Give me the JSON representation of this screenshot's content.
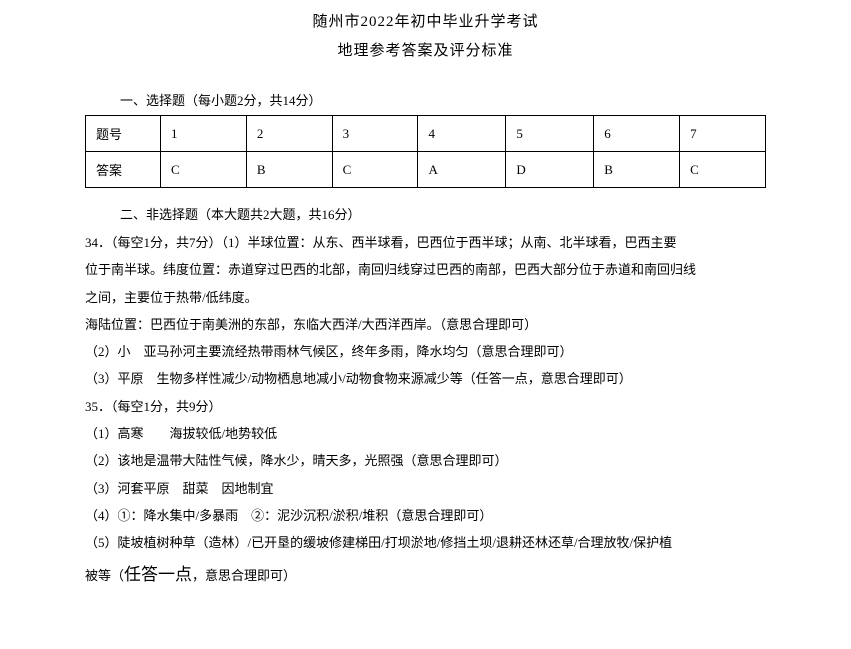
{
  "header": {
    "title_main": "随州市2022年初中毕业升学考试",
    "title_sub": "地理参考答案及评分标准"
  },
  "section1": {
    "header": "一、选择题（每小题2分，共14分）",
    "table": {
      "row1_label": "题号",
      "row2_label": "答案",
      "cols": [
        "1",
        "2",
        "3",
        "4",
        "5",
        "6",
        "7"
      ],
      "answers": [
        "C",
        "B",
        "C",
        "A",
        "D",
        "B",
        "C"
      ]
    }
  },
  "section2": {
    "header": "二、非选择题（本大题共2大题，共16分）",
    "lines": {
      "q34_line1": "34．（每空1分，共7分）（1）半球位置：从东、西半球看，巴西位于西半球；从南、北半球看，巴西主要",
      "q34_line2": "位于南半球。纬度位置：赤道穿过巴西的北部，南回归线穿过巴西的南部，巴西大部分位于赤道和南回归线",
      "q34_line3": "之间，主要位于热带/低纬度。",
      "q34_line4": "海陆位置：巴西位于南美洲的东部，东临大西洋/大西洋西岸。（意思合理即可）",
      "q34_line5": "（2）小　亚马孙河主要流经热带雨林气候区，终年多雨，降水均匀（意思合理即可）",
      "q34_line6": "（3）平原　生物多样性减少/动物栖息地减小/动物食物来源减少等（任答一点，意思合理即可）",
      "q35_line1": "35．（每空1分，共9分）",
      "q35_line2": "（1）高寒　　海拔较低/地势较低",
      "q35_line3": "（2）该地是温带大陆性气候，降水少，晴天多，光照强（意思合理即可）",
      "q35_line4": "（3）河套平原　甜菜　因地制宜",
      "q35_line5": "（4）①：降水集中/多暴雨　②：泥沙沉积/淤积/堆积（意思合理即可）",
      "q35_line6_part1": "（5）陡坡植树种草（造林）/已开垦的缓坡修建梯田/打坝淤地/修挡土坝/退耕还林还草/合理放牧/保护植",
      "q35_line7_part1": "被等（",
      "q35_line7_emphasis": "任答一点",
      "q35_line7_part2": "，意思合理即可）"
    }
  },
  "style": {
    "background_color": "#ffffff",
    "text_color": "#000000",
    "border_color": "#000000",
    "title_fontsize": 15,
    "body_fontsize": 13,
    "emphasis_fontsize": 17,
    "line_height": 2.1
  }
}
